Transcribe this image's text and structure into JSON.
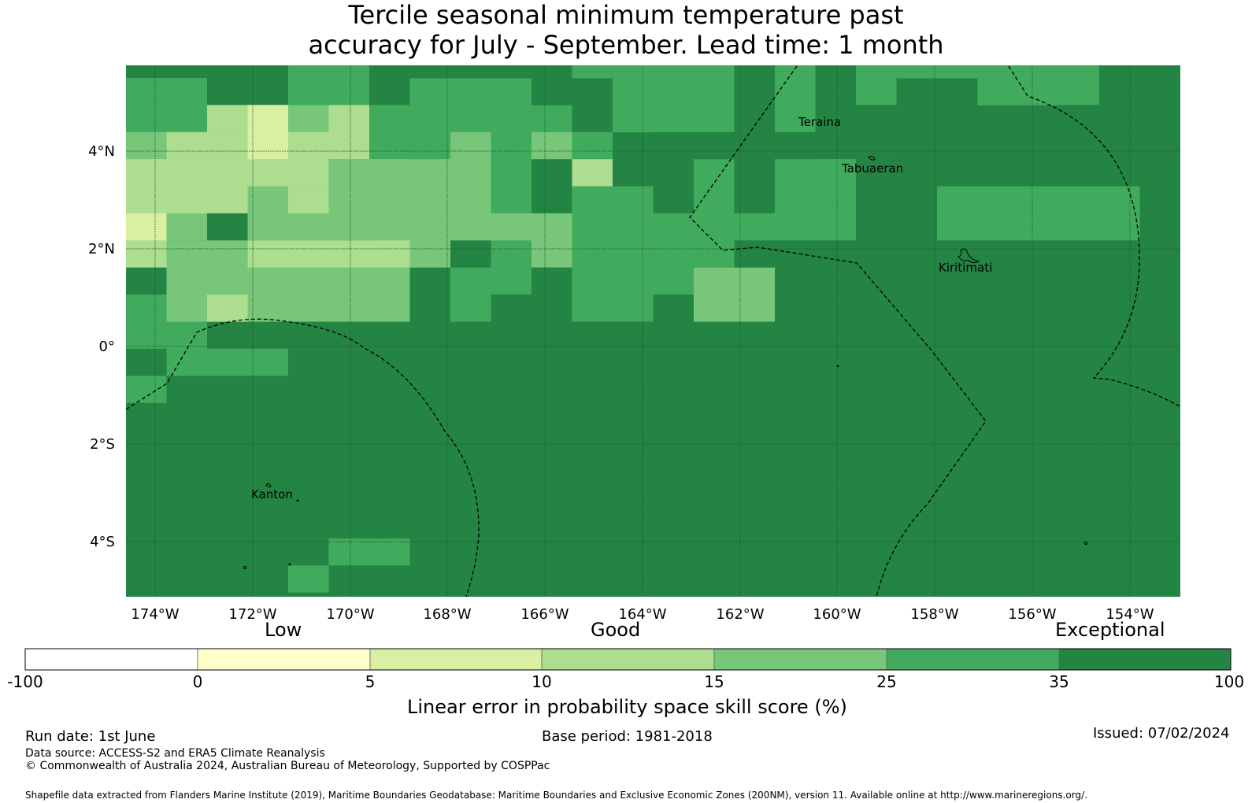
{
  "title_line1": "Tercile seasonal minimum temperature past",
  "title_line2": "accuracy for July - September. Lead time: 1 month",
  "map": {
    "lat_labels": [
      "4°N",
      "2°N",
      "0°",
      "2°S",
      "4°S"
    ],
    "lon_labels": [
      "174°W",
      "172°W",
      "170°W",
      "168°W",
      "166°W",
      "164°W",
      "162°W",
      "160°W",
      "158°W",
      "156°W",
      "154°W"
    ],
    "places": {
      "teraina": "Teraina",
      "tabuaeran": "Tabuaeran",
      "kiritimati": "Kiritimati",
      "kanton": "Kanton"
    },
    "colors": {
      "c0_5": "#ffffcc",
      "c5_10": "#d9f0a3",
      "c10_15": "#addd8e",
      "c15_25": "#78c679",
      "c25_35": "#41ab5d",
      "c35_100": "#238443"
    }
  },
  "colorbar": {
    "tiers": {
      "low": "Low",
      "good": "Good",
      "exceptional": "Exceptional"
    },
    "ticks": [
      "-100",
      "0",
      "5",
      "10",
      "15",
      "25",
      "35",
      "100"
    ],
    "label": "Linear error in probability space skill score (%)",
    "colors": [
      "#ffffff",
      "#ffffcc",
      "#d9f0a3",
      "#addd8e",
      "#78c679",
      "#41ab5d",
      "#238443"
    ]
  },
  "footer": {
    "run_date": "Run date: 1st June",
    "base_period": "Base period: 1981-2018",
    "issued": "Issued: 07/02/2024",
    "data_source": "Data source: ACCESS-S2 and ERA5 Climate Reanalysis",
    "copyright": "© Commonwealth of Australia 2024, Australian Bureau of Meteorology, Supported by COSPPac",
    "shapefile": "Shapefile data extracted from Flanders Marine Institute (2019), Maritime Boundaries Geodatabase: Maritime Boundaries and Exclusive Economic Zones (200NM), version 11. Available online at http://www.marineregions.org/."
  }
}
